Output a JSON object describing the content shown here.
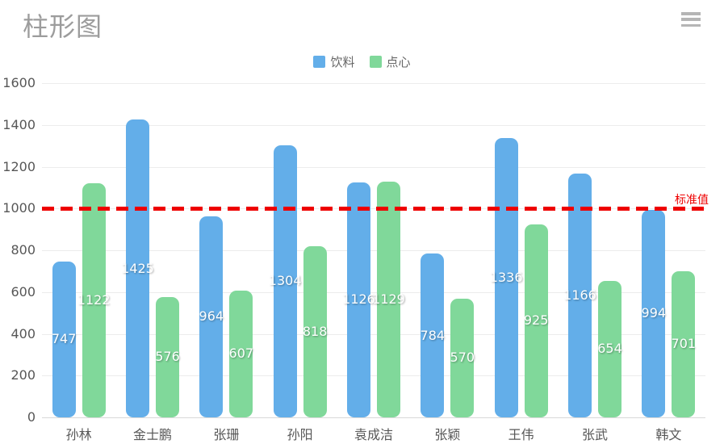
{
  "page": {
    "title": "柱形图"
  },
  "toolbar": {
    "menu_icon": "hamburger-menu-icon"
  },
  "chart_data": {
    "type": "bar",
    "title": "柱形图",
    "categories": [
      "孙林",
      "金士鹏",
      "张珊",
      "孙阳",
      "袁成洁",
      "张颖",
      "王伟",
      "张武",
      "韩文"
    ],
    "series": [
      {
        "name": "饮料",
        "color": "#63AEE9",
        "values": [
          747,
          1425,
          964,
          1304,
          1126,
          784,
          1336,
          1166,
          994
        ]
      },
      {
        "name": "点心",
        "color": "#80D89A",
        "values": [
          1122,
          576,
          607,
          818,
          1129,
          570,
          925,
          654,
          701
        ]
      }
    ],
    "xlabel": "",
    "ylabel": "",
    "ylim": [
      0,
      1600
    ],
    "yticks": [
      0,
      200,
      400,
      600,
      800,
      1000,
      1200,
      1400,
      1600
    ],
    "grid": true,
    "legend_position": "top-center",
    "value_labels": "inside-middle",
    "value_label_color": "#ffffff",
    "markline": {
      "value": 1000,
      "label": "标准值",
      "color": "#ee0000",
      "style": "dashed"
    },
    "colors": {
      "title_text": "#9c9c9c",
      "axis_text": "#575757",
      "gridline": "#ececec",
      "legend_text": "#666666",
      "menu_icon": "#b5b5b5",
      "background": "#ffffff"
    }
  }
}
